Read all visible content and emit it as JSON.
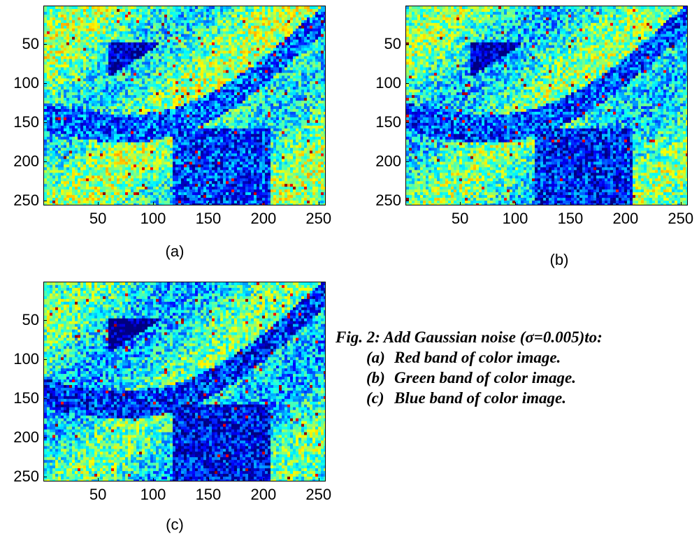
{
  "panels": [
    {
      "id": "a",
      "sublabel": "(a)"
    },
    {
      "id": "b",
      "sublabel": "(b)"
    },
    {
      "id": "c",
      "sublabel": "(c)"
    }
  ],
  "axes": {
    "xticks": [
      "50",
      "100",
      "150",
      "200",
      "250"
    ],
    "yticks": [
      "50",
      "100",
      "150",
      "200",
      "250"
    ],
    "xlim": [
      0.5,
      256.5
    ],
    "ylim": [
      0.5,
      256.5
    ]
  },
  "colormap": "jet",
  "caption": {
    "title": "Fig. 2: Add Gaussian noise (σ=0.005)to:",
    "items": [
      {
        "tag": "(a)",
        "text": "Red band of color image."
      },
      {
        "tag": "(b)",
        "text": "Green band of color image."
      },
      {
        "tag": "(c)",
        "text": "Blue band of color image."
      }
    ]
  }
}
